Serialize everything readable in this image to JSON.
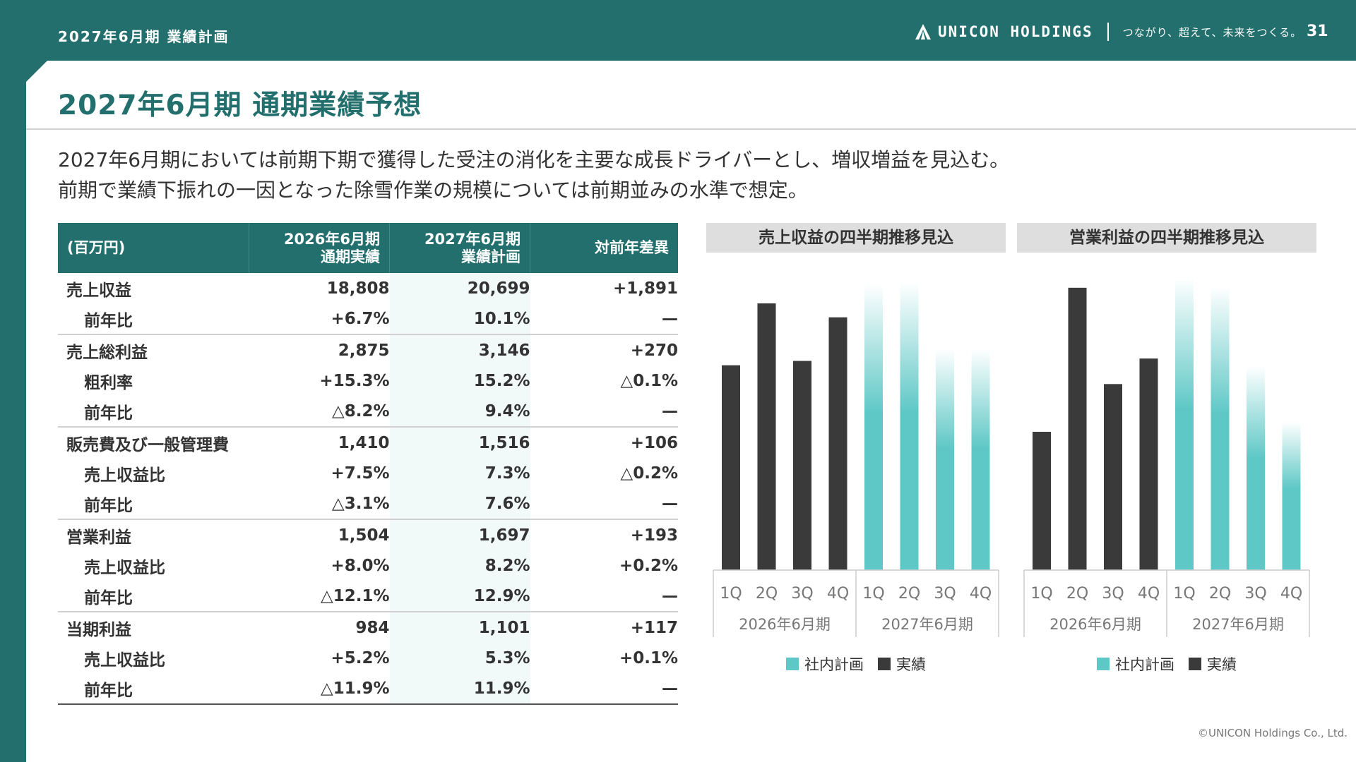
{
  "header": {
    "page_label": "2027年6月期 業績計画",
    "brand_name": "UNICON HOLDINGS",
    "tagline": "つながり、超えて、未来をつくる。",
    "page_number": "31"
  },
  "title": "2027年6月期 通期業績予想",
  "summary": [
    "2027年6月期においては前期下期で獲得した受注の消化を主要な成長ドライバーとし、増収増益を見込む。",
    "前期で業績下振れの一因となった除雪作業の規模については前期並みの水準で想定。"
  ],
  "table": {
    "headers": {
      "label": "(百万円)",
      "c26_line1": "2026年6月期",
      "c26_line2": "通期実績",
      "c27_line1": "2027年6月期",
      "c27_line2": "業績計画",
      "diff": "対前年差異"
    },
    "rows": [
      {
        "label": "売上収益",
        "sub": false,
        "grp": false,
        "v26": "18,808",
        "v27": "20,699",
        "diff": "+1,891"
      },
      {
        "label": "前年比",
        "sub": true,
        "grp": false,
        "v26": "+6.7%",
        "v27": "10.1%",
        "diff": "—"
      },
      {
        "label": "売上総利益",
        "sub": false,
        "grp": true,
        "v26": "2,875",
        "v27": "3,146",
        "diff": "+270"
      },
      {
        "label": "粗利率",
        "sub": true,
        "grp": false,
        "v26": "+15.3%",
        "v27": "15.2%",
        "diff": "△0.1%"
      },
      {
        "label": "前年比",
        "sub": true,
        "grp": false,
        "v26": "△8.2%",
        "v27": "9.4%",
        "diff": "—"
      },
      {
        "label": "販売費及び一般管理費",
        "sub": false,
        "grp": true,
        "v26": "1,410",
        "v27": "1,516",
        "diff": "+106"
      },
      {
        "label": "売上収益比",
        "sub": true,
        "grp": false,
        "v26": "+7.5%",
        "v27": "7.3%",
        "diff": "△0.2%"
      },
      {
        "label": "前年比",
        "sub": true,
        "grp": false,
        "v26": "△3.1%",
        "v27": "7.6%",
        "diff": "—"
      },
      {
        "label": "営業利益",
        "sub": false,
        "grp": true,
        "v26": "1,504",
        "v27": "1,697",
        "diff": "+193"
      },
      {
        "label": "売上収益比",
        "sub": true,
        "grp": false,
        "v26": "+8.0%",
        "v27": "8.2%",
        "diff": "+0.2%"
      },
      {
        "label": "前年比",
        "sub": true,
        "grp": false,
        "v26": "△12.1%",
        "v27": "12.9%",
        "diff": "—"
      },
      {
        "label": "当期利益",
        "sub": false,
        "grp": true,
        "v26": "984",
        "v27": "1,101",
        "diff": "+117"
      },
      {
        "label": "売上収益比",
        "sub": true,
        "grp": false,
        "v26": "+5.2%",
        "v27": "5.3%",
        "diff": "+0.1%"
      },
      {
        "label": "前年比",
        "sub": true,
        "grp": false,
        "v26": "△11.9%",
        "v27": "11.9%",
        "diff": "—",
        "last": true
      }
    ]
  },
  "colors": {
    "accent": "#236f6d",
    "actual": "#3a3a3a",
    "plan": "#5ec8c6"
  },
  "chart_data": [
    {
      "type": "bar",
      "title": "売上収益の四半期推移見込",
      "categories": [
        "1Q",
        "2Q",
        "3Q",
        "4Q",
        "1Q",
        "2Q",
        "3Q",
        "4Q"
      ],
      "groups": [
        "2026年6月期",
        "2027年6月期"
      ],
      "values": [
        235,
        306,
        240,
        290,
        328,
        330,
        254,
        254
      ],
      "kinds": [
        "actual",
        "actual",
        "actual",
        "actual",
        "plan",
        "plan",
        "plan",
        "plan"
      ],
      "ylim": [
        0,
        340
      ]
    },
    {
      "type": "bar",
      "title": "営業利益の四半期推移見込",
      "categories": [
        "1Q",
        "2Q",
        "3Q",
        "4Q",
        "1Q",
        "2Q",
        "3Q",
        "4Q"
      ],
      "groups": [
        "2026年6月期",
        "2027年6月期"
      ],
      "values": [
        168,
        343,
        226,
        257,
        355,
        345,
        248,
        180
      ],
      "kinds": [
        "actual",
        "actual",
        "actual",
        "actual",
        "plan",
        "plan",
        "plan",
        "plan"
      ],
      "ylim": [
        0,
        360
      ]
    }
  ],
  "legend": {
    "plan": "社内計画",
    "actual": "実績"
  },
  "copyright": "©UNICON Holdings Co., Ltd."
}
